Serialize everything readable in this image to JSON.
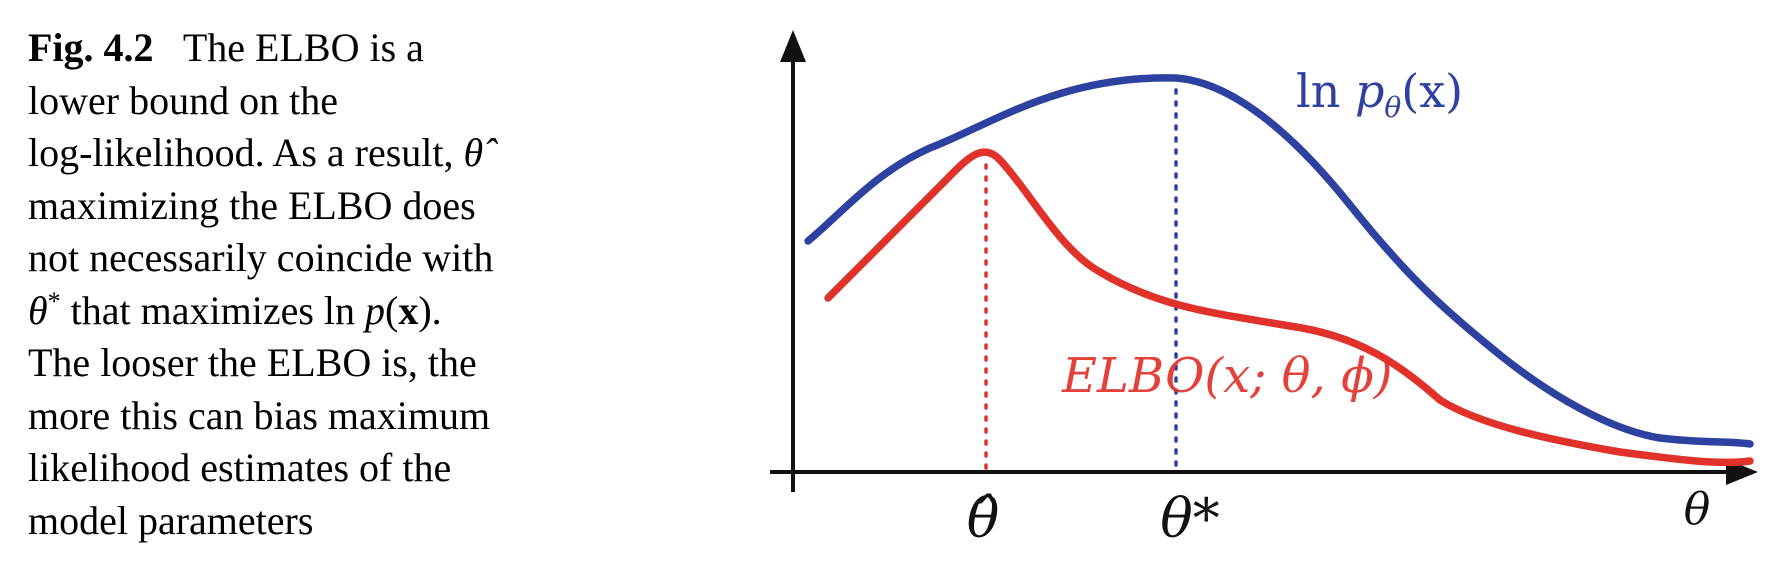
{
  "caption": {
    "fig_label": "Fig. 4.2",
    "line1_text": "The ELBO is a",
    "line2": "lower bound on the",
    "line3_text": "log-likelihood. As a result,",
    "line3_symbol": "θ̂",
    "line4": "maximizing the ELBO does",
    "line5": "not necessarily coincide with",
    "line6_symbol": "θ",
    "line6_sup": "*",
    "line6_text": "that maximizes ln",
    "line6_p": "p",
    "line6_open": "(",
    "line6_x": "x",
    "line6_close": ").",
    "line7": "The looser the ELBO is, the",
    "line8": "more this can bias maximum",
    "line9": "likelihood estimates of the",
    "line10": "model parameters"
  },
  "chart_data": {
    "type": "line",
    "series": [
      {
        "name": "ln pθ(x)",
        "color": "#2e41a0"
      },
      {
        "name": "ELBO(x; θ, ϕ)",
        "color": "#e0322a"
      }
    ],
    "labels": {
      "log_likelihood_ln": "ln",
      "log_likelihood_p": "p",
      "log_likelihood_sub": "θ",
      "log_likelihood_arg": "(x)",
      "elbo": "ELBO(x; θ, ϕ)",
      "theta_hat": "θ̂",
      "theta_star": "θ*",
      "theta_axis": "θ"
    },
    "colors": {
      "axis": "#111111",
      "blue": "#2e41a0",
      "red": "#e0322a"
    }
  }
}
